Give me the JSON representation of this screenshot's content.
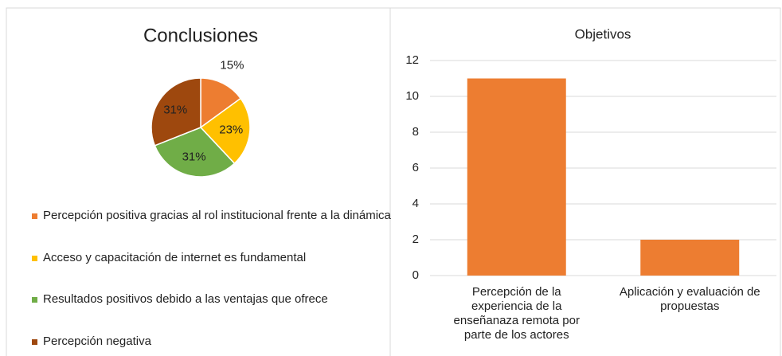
{
  "chart_data": [
    {
      "type": "pie",
      "title": "Conclusiones",
      "categories": [
        "Percepción positiva gracias al rol institucional frente a la dinámica",
        "Acceso y capacitación de internet es fundamental",
        "Resultados positivos debido a las ventajas que ofrece",
        "Percepción negativa"
      ],
      "values": [
        15,
        23,
        31,
        31
      ],
      "value_labels": [
        "15%",
        "23%",
        "31%",
        "31%"
      ],
      "colors": [
        "#ed7d31",
        "#ffc000",
        "#70ad47",
        "#9e480e"
      ],
      "legend": "bottom"
    },
    {
      "type": "bar",
      "title": "Objetivos",
      "categories": [
        "Percepción de la experiencia de la enseñanaza remota por parte de los actores",
        "Aplicación y evaluación de propuestas"
      ],
      "values": [
        11,
        2
      ],
      "color": "#ed7d31",
      "ylim": [
        0,
        12
      ],
      "yticks": [
        0,
        2,
        4,
        6,
        8,
        10,
        12
      ],
      "grid": true
    }
  ]
}
